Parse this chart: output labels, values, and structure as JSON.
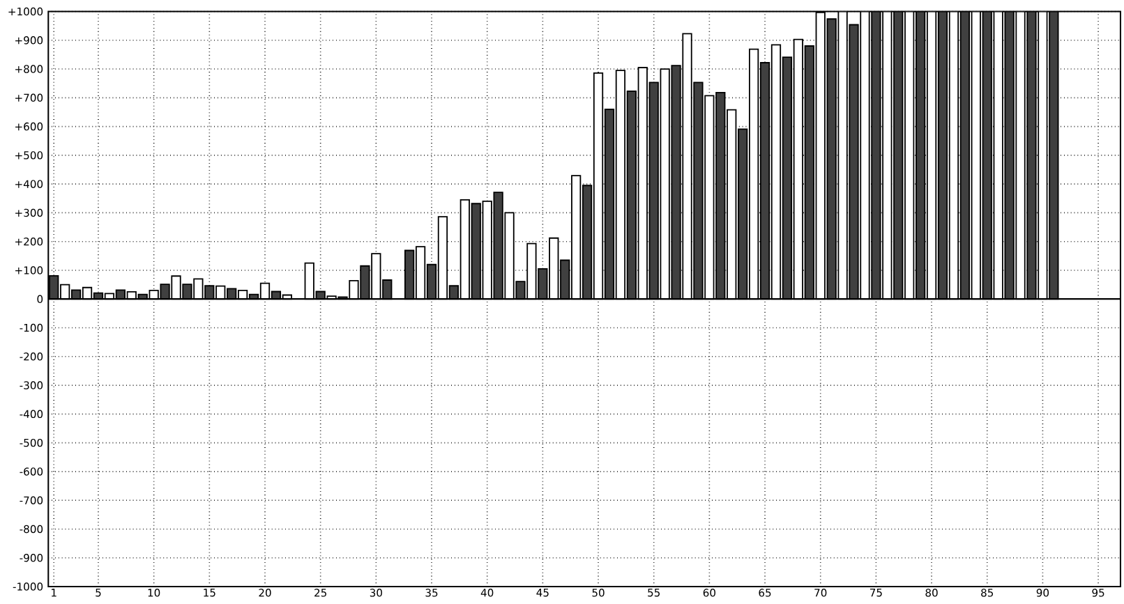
{
  "chart_data": {
    "type": "bar",
    "grid": true,
    "xlim": [
      0.5,
      97
    ],
    "ylim": [
      -1000,
      1000
    ],
    "xticks": [
      1,
      5,
      10,
      15,
      20,
      25,
      30,
      35,
      40,
      45,
      50,
      55,
      60,
      65,
      70,
      75,
      80,
      85,
      90,
      95
    ],
    "yticks": [
      {
        "value": -1000,
        "label": "-1000"
      },
      {
        "value": -900,
        "label": "-900"
      },
      {
        "value": -800,
        "label": "-800"
      },
      {
        "value": -700,
        "label": "-700"
      },
      {
        "value": -600,
        "label": "-600"
      },
      {
        "value": -500,
        "label": "-500"
      },
      {
        "value": -400,
        "label": "-400"
      },
      {
        "value": -300,
        "label": "-300"
      },
      {
        "value": -200,
        "label": "-200"
      },
      {
        "value": -100,
        "label": "-100"
      },
      0,
      {
        "value": 100,
        "label": "+100"
      },
      {
        "value": 200,
        "label": "+200"
      },
      {
        "value": 300,
        "label": "+300"
      },
      {
        "value": 400,
        "label": "+400"
      },
      {
        "value": 500,
        "label": "+500"
      },
      {
        "value": 600,
        "label": "+600"
      },
      {
        "value": 700,
        "label": "+700"
      },
      {
        "value": 800,
        "label": "+800"
      },
      {
        "value": 900,
        "label": "+900"
      },
      {
        "value": 1000,
        "label": "+1000"
      }
    ],
    "series": [
      {
        "color": "#404040",
        "x": [
          1,
          3,
          5,
          7,
          9,
          11,
          13,
          15,
          17,
          19,
          21,
          23,
          25,
          27,
          29,
          31,
          33,
          35,
          37,
          39,
          41,
          43,
          45,
          47,
          49,
          51,
          53,
          55,
          57,
          59,
          61,
          63,
          65,
          67,
          69,
          71,
          73,
          75,
          77,
          79,
          81,
          83,
          85,
          87,
          89,
          91
        ],
        "values": [
          81,
          31,
          21,
          31,
          16,
          51,
          51,
          46,
          36,
          16,
          26,
          null,
          26,
          7,
          115,
          66,
          169,
          120,
          46,
          332,
          371,
          61,
          105,
          135,
          395,
          660,
          723,
          753,
          812,
          753,
          718,
          591,
          822,
          841,
          880,
          974,
          954,
          1000,
          1000,
          1000,
          1000,
          1000,
          1000,
          1000,
          1000,
          1000
        ]
      },
      {
        "color": "#ffffff",
        "x": [
          2,
          4,
          6,
          8,
          10,
          12,
          14,
          16,
          18,
          20,
          22,
          24,
          26,
          28,
          30,
          32,
          34,
          36,
          38,
          40,
          42,
          44,
          46,
          48,
          50,
          52,
          54,
          56,
          58,
          60,
          62,
          64,
          66,
          68,
          70,
          72,
          74,
          76,
          78,
          80,
          82,
          84,
          86,
          88,
          90
        ],
        "values": [
          50,
          40,
          19,
          25,
          30,
          80,
          70,
          45,
          30,
          55,
          14,
          125,
          10,
          64,
          158,
          null,
          182,
          286,
          345,
          340,
          300,
          193,
          212,
          429,
          786,
          795,
          805,
          800,
          923,
          707,
          658,
          869,
          884,
          903,
          997,
          1000,
          1000,
          1000,
          1000,
          1000,
          1000,
          1000,
          1000,
          1000,
          1000
        ]
      }
    ]
  }
}
